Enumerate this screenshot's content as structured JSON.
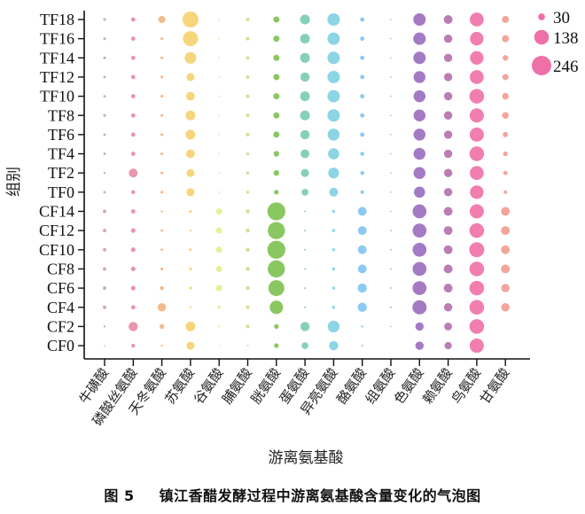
{
  "chart_data": {
    "type": "bubble",
    "title": "",
    "xlabel": "游离氨基酸",
    "ylabel": "组别",
    "categories": [
      "牛磺酸",
      "磷酸丝氨酸",
      "天冬氨酸",
      "苏氨酸",
      "谷氨酸",
      "脯氨酸",
      "胱氨酸",
      "蛋氨酸",
      "异亮氨酸",
      "酪氨酸",
      "组氨酸",
      "色氨酸",
      "赖氨酸",
      "鸟氨酸",
      "甘氨酸"
    ],
    "groups": [
      "TF18",
      "TF16",
      "TF14",
      "TF12",
      "TF10",
      "TF8",
      "TF6",
      "TF4",
      "TF2",
      "TF0",
      "CF14",
      "CF12",
      "CF10",
      "CF8",
      "CF6",
      "CF4",
      "CF2",
      "CF0"
    ],
    "colors": [
      "#c7a2bb",
      "#e58ba3",
      "#f2b27e",
      "#f5d26e",
      "#e4ee8c",
      "#cadd8e",
      "#7dc14f",
      "#7acbb0",
      "#80d0e1",
      "#80c4ef",
      "#c9c9c9",
      "#9a6bbf",
      "#b46fae",
      "#ef70a6",
      "#f29b91"
    ],
    "size_legend": [
      30,
      138,
      246
    ],
    "values": [
      [
        5,
        12,
        32,
        165,
        2,
        8,
        25,
        62,
        100,
        12,
        2,
        100,
        50,
        125,
        32
      ],
      [
        5,
        12,
        5,
        148,
        2,
        8,
        25,
        62,
        100,
        12,
        2,
        100,
        45,
        118,
        32
      ],
      [
        5,
        12,
        5,
        88,
        2,
        8,
        25,
        62,
        100,
        12,
        2,
        100,
        45,
        118,
        20
      ],
      [
        4,
        12,
        5,
        42,
        2,
        8,
        25,
        55,
        100,
        12,
        2,
        92,
        45,
        125,
        25
      ],
      [
        4,
        12,
        5,
        50,
        2,
        8,
        25,
        62,
        100,
        12,
        2,
        92,
        45,
        138,
        28
      ],
      [
        5,
        12,
        5,
        62,
        2,
        8,
        25,
        62,
        100,
        12,
        2,
        92,
        45,
        130,
        28
      ],
      [
        4,
        12,
        5,
        62,
        2,
        8,
        25,
        55,
        92,
        12,
        2,
        92,
        45,
        130,
        18
      ],
      [
        4,
        12,
        5,
        50,
        2,
        6,
        20,
        50,
        80,
        10,
        2,
        92,
        45,
        138,
        15
      ],
      [
        3,
        50,
        5,
        42,
        2,
        6,
        20,
        42,
        75,
        10,
        2,
        92,
        45,
        125,
        12
      ],
      [
        4,
        10,
        5,
        42,
        2,
        6,
        14,
        30,
        50,
        8,
        2,
        80,
        45,
        118,
        8
      ],
      [
        8,
        12,
        3,
        5,
        25,
        10,
        210,
        2,
        6,
        50,
        2,
        125,
        50,
        130,
        50
      ],
      [
        8,
        14,
        4,
        3,
        25,
        10,
        190,
        2,
        6,
        50,
        3,
        125,
        50,
        138,
        50
      ],
      [
        8,
        14,
        4,
        5,
        25,
        10,
        210,
        2,
        6,
        50,
        3,
        125,
        50,
        146,
        50
      ],
      [
        8,
        14,
        5,
        5,
        25,
        10,
        190,
        2,
        6,
        50,
        3,
        125,
        50,
        138,
        50
      ],
      [
        8,
        14,
        10,
        5,
        25,
        10,
        165,
        2,
        6,
        55,
        3,
        125,
        50,
        138,
        45
      ],
      [
        8,
        12,
        45,
        3,
        6,
        8,
        115,
        2,
        6,
        55,
        3,
        130,
        45,
        138,
        45
      ],
      [
        3,
        55,
        15,
        62,
        3,
        8,
        14,
        55,
        90,
        3,
        2,
        45,
        40,
        138,
        0
      ],
      [
        1,
        10,
        3,
        42,
        1,
        2,
        14,
        30,
        55,
        2,
        0,
        45,
        35,
        130,
        0
      ]
    ]
  },
  "caption": {
    "figure_number": "图 5",
    "text": "镇江香醋发酵过程中游离氨基酸含量变化的气泡图"
  }
}
